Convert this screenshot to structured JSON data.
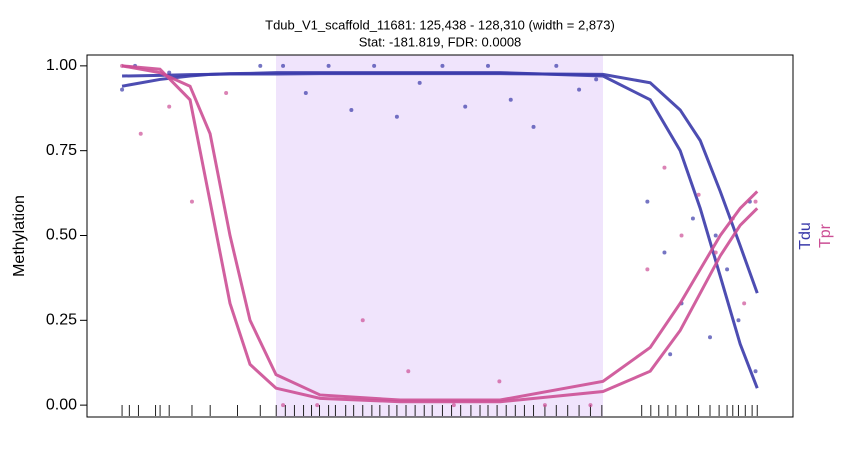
{
  "chart_data": {
    "type": "line",
    "title": "Tdub_V1_scaffold_11681: 125,438 - 128,310 (width = 2,873)",
    "subtitle": "Stat: -181.819, FDR: 0.0008",
    "ylabel": "Methylation",
    "xlim": [
      123778,
      129979
    ],
    "ylim": [
      -0.035,
      1.032
    ],
    "yticks": [
      {
        "value": 0,
        "label": "0.00"
      },
      {
        "value": 0.25,
        "label": "0.25"
      },
      {
        "value": 0.5,
        "label": "0.50"
      },
      {
        "value": 0.75,
        "label": "0.75"
      },
      {
        "value": 1,
        "label": "1.00"
      }
    ],
    "region": [
      125438,
      128310
    ],
    "region_color": "#f0e4fc",
    "series": [
      {
        "name": "Tdu",
        "color": "#3a3aaa",
        "lines": [
          {
            "x": [
              124086,
              124419,
              124683,
              124859,
              125034,
              125210,
              125438,
              125825,
              126528,
              127407,
              128310,
              128725,
              128988,
              129164,
              129340,
              129515,
              129665
            ],
            "values": [
              0.94,
              0.96,
              0.97,
              0.975,
              0.977,
              0.978,
              0.98,
              0.98,
              0.98,
              0.98,
              0.97,
              0.9,
              0.75,
              0.58,
              0.38,
              0.18,
              0.05
            ]
          },
          {
            "x": [
              124086,
              124419,
              124683,
              124859,
              125034,
              125210,
              125438,
              125825,
              126528,
              127407,
              128310,
              128725,
              128988,
              129164,
              129340,
              129515,
              129665
            ],
            "values": [
              0.97,
              0.972,
              0.974,
              0.975,
              0.976,
              0.976,
              0.976,
              0.977,
              0.977,
              0.977,
              0.975,
              0.95,
              0.87,
              0.78,
              0.63,
              0.47,
              0.33
            ]
          }
        ],
        "points": {
          "x": [
            124086,
            124200,
            124500,
            125300,
            125500,
            125700,
            125900,
            126100,
            126300,
            126500,
            126700,
            126900,
            127100,
            127300,
            127500,
            127700,
            127900,
            128100,
            128250,
            128700,
            128850,
            129000,
            129100,
            129250,
            129400,
            129500,
            129600,
            128900,
            129300,
            129650
          ],
          "values": [
            0.93,
            1.0,
            0.98,
            1.0,
            1.0,
            0.92,
            1.0,
            0.87,
            1.0,
            0.85,
            0.95,
            1.0,
            0.88,
            1.0,
            0.9,
            0.82,
            1.0,
            0.93,
            0.96,
            0.6,
            0.45,
            0.3,
            0.55,
            0.2,
            0.4,
            0.25,
            0.6,
            0.15,
            0.5,
            0.1
          ]
        }
      },
      {
        "name": "Tpr",
        "color": "#cc4f95",
        "lines": [
          {
            "x": [
              124086,
              124419,
              124683,
              124859,
              125034,
              125210,
              125438,
              125825,
              126528,
              127407,
              128310,
              128725,
              128988,
              129164,
              129340,
              129515,
              129665
            ],
            "values": [
              1.0,
              0.99,
              0.9,
              0.6,
              0.3,
              0.12,
              0.05,
              0.02,
              0.01,
              0.01,
              0.04,
              0.1,
              0.22,
              0.33,
              0.44,
              0.53,
              0.58
            ]
          },
          {
            "x": [
              124086,
              124419,
              124683,
              124859,
              125034,
              125210,
              125438,
              125825,
              126528,
              127407,
              128310,
              128725,
              128988,
              129164,
              129340,
              129515,
              129665
            ],
            "values": [
              1.0,
              0.98,
              0.94,
              0.8,
              0.5,
              0.25,
              0.09,
              0.03,
              0.015,
              0.015,
              0.07,
              0.17,
              0.3,
              0.4,
              0.5,
              0.58,
              0.63
            ]
          }
        ],
        "points": {
          "x": [
            124086,
            124250,
            124500,
            124700,
            125000,
            125500,
            125800,
            126200,
            126600,
            127000,
            127400,
            127800,
            128200,
            128700,
            128850,
            129000,
            129150,
            129300,
            129450,
            129550,
            129650
          ],
          "values": [
            1.0,
            0.8,
            0.88,
            0.6,
            0.92,
            0.0,
            0.0,
            0.25,
            0.1,
            0.0,
            0.07,
            0.0,
            0.0,
            0.4,
            0.7,
            0.5,
            0.62,
            0.45,
            0.55,
            0.3,
            0.6
          ]
        }
      }
    ],
    "rug": [
      124086,
      124150,
      124230,
      124380,
      124420,
      124500,
      124700,
      124860,
      125100,
      125300,
      125440,
      125520,
      125600,
      125680,
      125750,
      125820,
      125900,
      125960,
      126050,
      126120,
      126200,
      126280,
      126350,
      126430,
      126500,
      126580,
      126660,
      126740,
      126810,
      126900,
      126980,
      127060,
      127150,
      127230,
      127300,
      127380,
      127460,
      127540,
      127620,
      127700,
      127800,
      127900,
      128000,
      128100,
      128200,
      128300,
      128650,
      128730,
      128800,
      128880,
      128950,
      129050,
      129150,
      129250,
      129330,
      129400,
      129450,
      129500,
      129560,
      129620,
      129665
    ]
  }
}
